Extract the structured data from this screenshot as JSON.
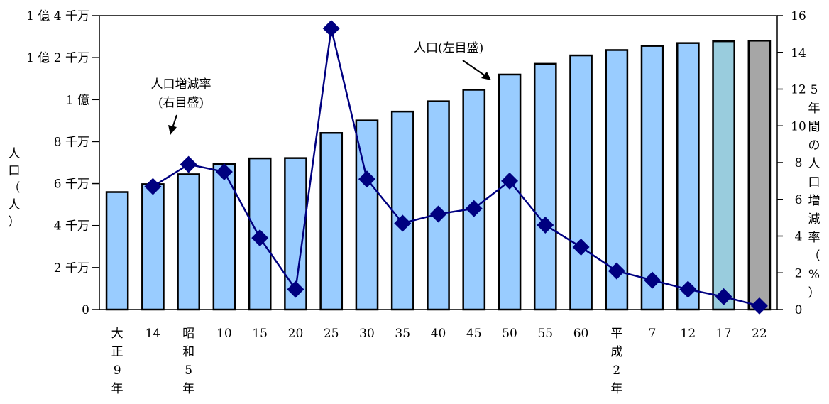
{
  "chart_data": {
    "type": "bar",
    "categories": [
      [
        "大",
        "正",
        "9",
        "年"
      ],
      [
        "14"
      ],
      [
        "昭",
        "和",
        "5",
        "年"
      ],
      [
        "10"
      ],
      [
        "15"
      ],
      [
        "20"
      ],
      [
        "25"
      ],
      [
        "30"
      ],
      [
        "35"
      ],
      [
        "40"
      ],
      [
        "45"
      ],
      [
        "50"
      ],
      [
        "55"
      ],
      [
        "60"
      ],
      [
        "平",
        "成",
        "2",
        "年"
      ],
      [
        "7"
      ],
      [
        "12"
      ],
      [
        "17"
      ],
      [
        "22"
      ]
    ],
    "series": [
      {
        "name": "人口",
        "kind": "bar",
        "axis": "left",
        "values": [
          55963053,
          59736822,
          64450005,
          69254148,
          71998104,
          72147000,
          84114574,
          90076594,
          94301623,
          99209137,
          104665171,
          111939643,
          117060396,
          121048923,
          123611167,
          125570246,
          126925843,
          127767994,
          128057352
        ],
        "colors": [
          "#99ccff",
          "#99ccff",
          "#99ccff",
          "#99ccff",
          "#99ccff",
          "#99ccff",
          "#99ccff",
          "#99ccff",
          "#99ccff",
          "#99ccff",
          "#99ccff",
          "#99ccff",
          "#99ccff",
          "#99ccff",
          "#99ccff",
          "#99ccff",
          "#99ccff",
          "#99ccdd",
          "#a6a6a6"
        ]
      },
      {
        "name": "人口増減率",
        "kind": "line",
        "axis": "right",
        "values": [
          null,
          6.7,
          7.9,
          7.5,
          3.9,
          1.1,
          15.3,
          7.1,
          4.7,
          5.2,
          5.5,
          7.0,
          4.6,
          3.4,
          2.1,
          1.6,
          1.1,
          0.7,
          0.2
        ],
        "color": "#000080"
      }
    ],
    "left_axis": {
      "ylim": [
        0,
        140000000
      ],
      "tick_values": [
        0,
        20000000,
        40000000,
        60000000,
        80000000,
        100000000,
        120000000,
        140000000
      ],
      "tick_labels": [
        "0",
        "2 千万",
        "4 千万",
        "6 千万",
        "8 千万",
        "1 億",
        "1 億 2 千万",
        "1 億 4 千万"
      ],
      "label": [
        "人",
        "口",
        "（",
        "人",
        "）"
      ]
    },
    "right_axis": {
      "ylim": [
        0,
        16
      ],
      "tick_values": [
        0,
        2,
        4,
        6,
        8,
        10,
        12,
        14,
        16
      ],
      "tick_labels": [
        "0",
        "2",
        "4",
        "6",
        "8",
        "10",
        "12",
        "14",
        "16"
      ],
      "label": [
        "5",
        "年",
        "間",
        "の",
        "人",
        "口",
        "増",
        "減",
        "率",
        "（",
        "%",
        "）"
      ]
    },
    "annotations": {
      "population": "人口(左目盛)",
      "rate": [
        "人口増減率",
        "(右目盛)"
      ]
    },
    "grid": false
  }
}
